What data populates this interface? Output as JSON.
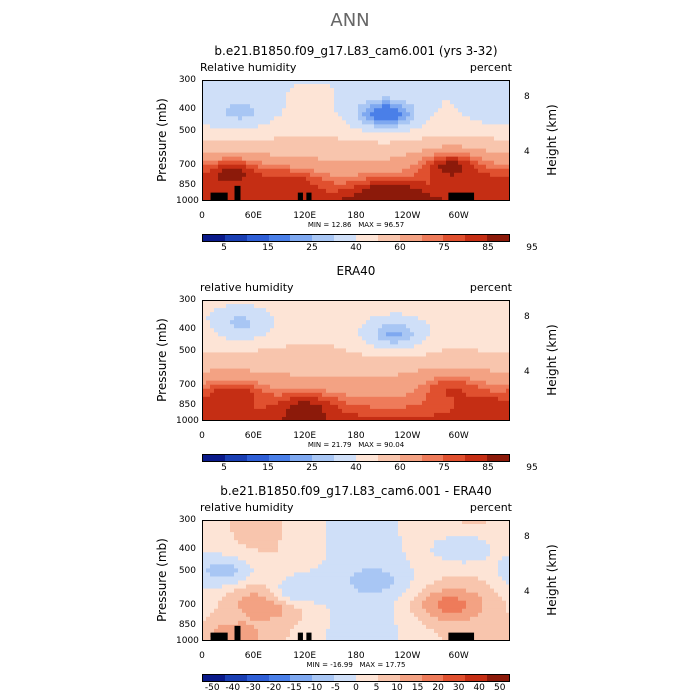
{
  "figure": {
    "title": "ANN"
  },
  "axes": {
    "y_title": "Pressure (mb)",
    "y2_title": "Height (km)",
    "y_ticks": [
      "300",
      "400",
      "500",
      "700",
      "850",
      "1000"
    ],
    "y2_ticks": [
      "8",
      "4"
    ],
    "x_ticks": [
      "0",
      "60E",
      "120E",
      "180",
      "120W",
      "60W"
    ]
  },
  "colors": {
    "scale": [
      "#0a1a8a",
      "#1a3fb3",
      "#2f5fd6",
      "#4a7fe8",
      "#7ea8f0",
      "#a8c6f4",
      "#cfdff8",
      "#fde4d6",
      "#f8c5ad",
      "#f3a283",
      "#ee7b5a",
      "#e0502f",
      "#c52e14",
      "#8c1a0a"
    ],
    "land": "#000000",
    "text_gray": "#666666"
  },
  "panels": [
    {
      "title": "b.e21.B1850.f09_g17.L83_cam6.001 (yrs 3-32)",
      "left_label": "Relative humidity",
      "right_label": "percent",
      "min_text": "MIN =   12.86",
      "max_text": "MAX =   96.57",
      "colorbar_labels": [
        "5",
        "15",
        "25",
        "40",
        "60",
        "75",
        "85",
        "95"
      ]
    },
    {
      "title": "ERA40",
      "left_label": "relative humidity",
      "right_label": "percent",
      "min_text": "MIN =   21.79",
      "max_text": "MAX =   90.04",
      "colorbar_labels": [
        "5",
        "15",
        "25",
        "40",
        "60",
        "75",
        "85",
        "95"
      ]
    },
    {
      "title": "b.e21.B1850.f09_g17.L83_cam6.001 - ERA40",
      "left_label": "relative humidity",
      "right_label": "percent",
      "min_text": "MIN =  -16.99",
      "max_text": "MAX =   17.75",
      "colorbar_labels": [
        "-50",
        "-40",
        "-30",
        "-20",
        "-15",
        "-10",
        "-5",
        "0",
        "5",
        "10",
        "15",
        "20",
        "30",
        "40",
        "50"
      ]
    }
  ],
  "chart_data": [
    {
      "type": "heatmap",
      "title": "b.e21.B1850.f09_g17.L83_cam6.001 (yrs 3-32)",
      "xlabel": "",
      "ylabel": "Pressure (mb)",
      "y2label": "Height (km)",
      "xlim": [
        0,
        360
      ],
      "ylim": [
        1000,
        300
      ],
      "grid": false,
      "scale_levels": [
        5,
        10,
        15,
        20,
        25,
        30,
        40,
        50,
        60,
        70,
        75,
        80,
        85,
        90,
        95
      ],
      "min": 12.86,
      "max": 96.57,
      "features": [
        {
          "lon": 215,
          "p": 420,
          "value": 15
        },
        {
          "lon": 43,
          "p": 410,
          "value": 27
        },
        {
          "lon": 345,
          "p": 400,
          "value": 33
        },
        {
          "lon": 35,
          "p": 770,
          "value": 88
        },
        {
          "lon": 292,
          "p": 720,
          "value": 88
        },
        {
          "lon": 100,
          "p": 860,
          "value": 85
        },
        {
          "lon": 330,
          "p": 880,
          "value": 85
        },
        {
          "lon": 220,
          "p": 960,
          "value": 95
        }
      ]
    },
    {
      "type": "heatmap",
      "title": "ERA40",
      "xlabel": "",
      "ylabel": "Pressure (mb)",
      "y2label": "Height (km)",
      "xlim": [
        0,
        360
      ],
      "ylim": [
        1000,
        300
      ],
      "grid": false,
      "scale_levels": [
        5,
        10,
        15,
        20,
        25,
        30,
        40,
        50,
        60,
        70,
        75,
        80,
        85,
        90,
        95
      ],
      "min": 21.79,
      "max": 90.04,
      "features": [
        {
          "lon": 225,
          "p": 420,
          "value": 24
        },
        {
          "lon": 43,
          "p": 380,
          "value": 27
        },
        {
          "lon": 340,
          "p": 400,
          "value": 42
        },
        {
          "lon": 35,
          "p": 780,
          "value": 85
        },
        {
          "lon": 292,
          "p": 740,
          "value": 80
        },
        {
          "lon": 120,
          "p": 900,
          "value": 88
        },
        {
          "lon": 330,
          "p": 900,
          "value": 85
        }
      ]
    },
    {
      "type": "heatmap",
      "title": "b.e21.B1850.f09_g17.L83_cam6.001 - ERA40",
      "xlabel": "",
      "ylabel": "Pressure (mb)",
      "y2label": "Height (km)",
      "xlim": [
        0,
        360
      ],
      "ylim": [
        1000,
        300
      ],
      "grid": false,
      "scale_levels": [
        -50,
        -40,
        -30,
        -20,
        -15,
        -10,
        -5,
        0,
        5,
        10,
        15,
        20,
        30,
        40,
        50
      ],
      "min": -16.99,
      "max": 17.75,
      "features": [
        {
          "lon": 200,
          "p": 550,
          "value": -12
        },
        {
          "lon": 25,
          "p": 500,
          "value": -12
        },
        {
          "lon": 305,
          "p": 400,
          "value": -10
        },
        {
          "lon": 80,
          "p": 680,
          "value": 12
        },
        {
          "lon": 290,
          "p": 700,
          "value": 12
        },
        {
          "lon": 115,
          "p": 600,
          "value": -10
        },
        {
          "lon": 35,
          "p": 950,
          "value": 8
        }
      ]
    }
  ]
}
